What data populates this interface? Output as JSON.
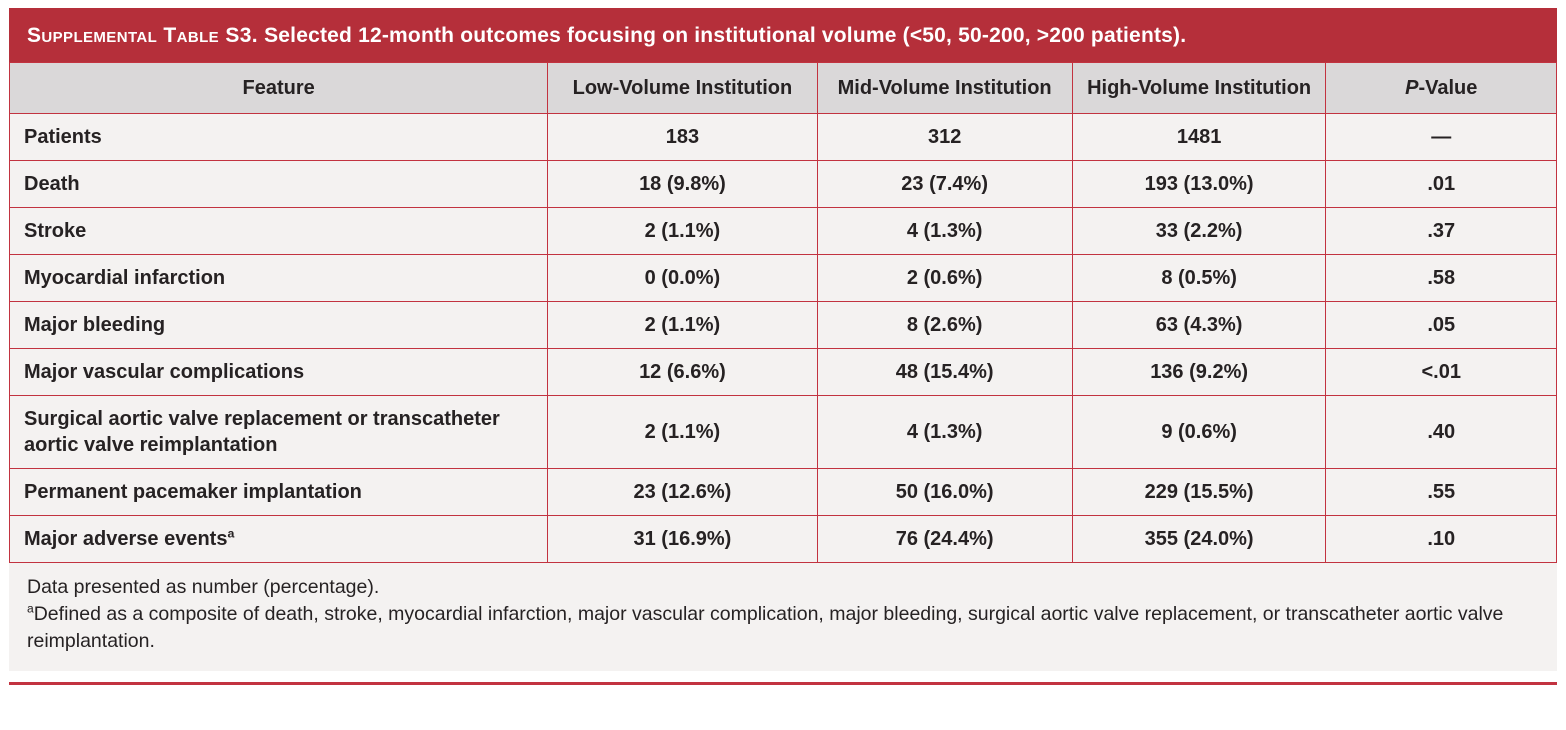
{
  "colors": {
    "accent_red": "#b52f3a",
    "border_red": "#c23340",
    "header_bg": "#dad8d9",
    "row_bg": "#f4f2f1",
    "text_color": "#262223"
  },
  "title": {
    "label": "Supplemental Table S3.",
    "rest": " Selected 12-month outcomes focusing on institutional volume (<50, 50-200, >200 patients)."
  },
  "table": {
    "columns": [
      {
        "label": "Feature"
      },
      {
        "label": "Low-Volume Institution"
      },
      {
        "label": "Mid-Volume Institution"
      },
      {
        "label": "High-Volume Institution"
      },
      {
        "label": "P-Value",
        "italic_first": true
      }
    ],
    "rows": [
      {
        "feature": "Patients",
        "low": "183",
        "mid": "312",
        "high": "1481",
        "p": "—"
      },
      {
        "feature": "Death",
        "low": "18 (9.8%)",
        "mid": "23 (7.4%)",
        "high": "193 (13.0%)",
        "p": ".01"
      },
      {
        "feature": "Stroke",
        "low": "2 (1.1%)",
        "mid": "4 (1.3%)",
        "high": "33 (2.2%)",
        "p": ".37"
      },
      {
        "feature": "Myocardial infarction",
        "low": "0 (0.0%)",
        "mid": "2 (0.6%)",
        "high": "8 (0.5%)",
        "p": ".58"
      },
      {
        "feature": "Major bleeding",
        "low": "2 (1.1%)",
        "mid": "8 (2.6%)",
        "high": "63 (4.3%)",
        "p": ".05"
      },
      {
        "feature": "Major vascular complications",
        "low": "12 (6.6%)",
        "mid": "48 (15.4%)",
        "high": "136 (9.2%)",
        "p": "<.01"
      },
      {
        "feature": "Surgical aortic valve replacement or transcatheter aortic valve reimplantation",
        "low": "2 (1.1%)",
        "mid": "4 (1.3%)",
        "high": "9 (0.6%)",
        "p": ".40"
      },
      {
        "feature": "Permanent pacemaker implantation",
        "low": "23 (12.6%)",
        "mid": "50 (16.0%)",
        "high": "229 (15.5%)",
        "p": ".55"
      },
      {
        "feature": "Major adverse events",
        "feature_sup": "a",
        "low": "31 (16.9%)",
        "mid": "76 (24.4%)",
        "high": "355 (24.0%)",
        "p": ".10"
      }
    ]
  },
  "footnotes": [
    {
      "text": "Data presented as number (percentage)."
    },
    {
      "sup": "a",
      "text": "Defined as a composite of death, stroke, myocardial infarction, major vascular complication, major bleeding, surgical aortic valve replacement, or transcatheter aortic valve reimplantation."
    }
  ]
}
